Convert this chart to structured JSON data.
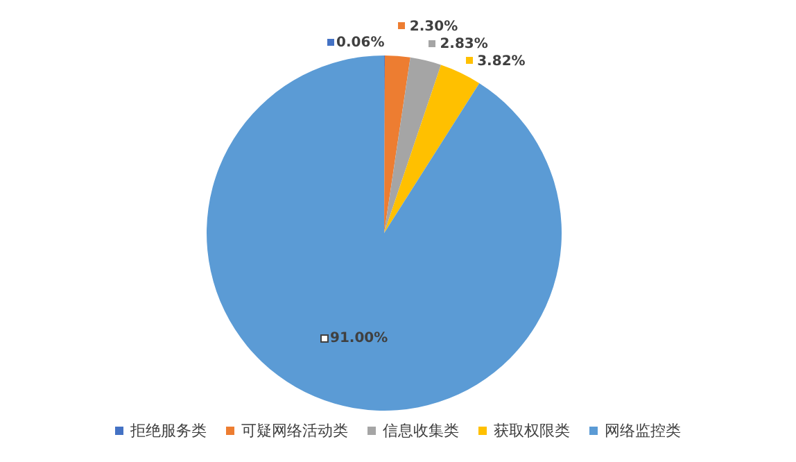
{
  "chart_data": {
    "type": "pie",
    "categories": [
      "拒绝服务类",
      "可疑网络活动类",
      "信息收集类",
      "获取权限类",
      "网络监控类"
    ],
    "values": [
      0.06,
      2.3,
      2.83,
      3.82,
      91.0
    ],
    "colors": [
      "#4472c4",
      "#ed7d31",
      "#a5a5a5",
      "#ffc000",
      "#5b9bd5"
    ],
    "value_labels": [
      "0.06%",
      "2.30%",
      "2.83%",
      "3.82%",
      "91.00%"
    ],
    "legend": "bottom"
  }
}
